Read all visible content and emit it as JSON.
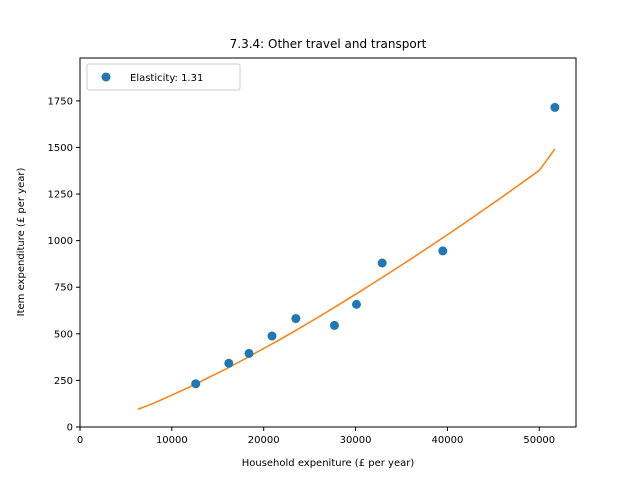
{
  "chart_data": {
    "type": "scatter",
    "title": "7.3.4: Other travel and transport",
    "xlabel": "Household expeniture (£ per year)",
    "ylabel": "Item expenditure (£ per year)",
    "xlim": [
      0,
      54000
    ],
    "ylim": [
      0,
      1980
    ],
    "xticks": [
      0,
      10000,
      20000,
      30000,
      40000,
      50000
    ],
    "yticks": [
      0,
      250,
      500,
      750,
      1000,
      1250,
      1500,
      1750
    ],
    "grid": false,
    "legend_position": "top-left",
    "series": [
      {
        "name": "Elasticity: 1.31",
        "kind": "points",
        "color": "#1f77b4",
        "x": [
          12600,
          16200,
          18400,
          20900,
          23500,
          27700,
          30100,
          32900,
          39500,
          51700
        ],
        "y": [
          232,
          342,
          395,
          488,
          582,
          545,
          658,
          880,
          945,
          1715
        ]
      },
      {
        "kind": "line",
        "color": "#ff7f0e",
        "x": [
          6300,
          8000,
          10000,
          12000,
          14000,
          16000,
          18000,
          20000,
          22000,
          24000,
          26000,
          28000,
          30000,
          32000,
          34000,
          36000,
          38000,
          40000,
          42000,
          44000,
          46000,
          48000,
          50000,
          51700
        ],
        "y": [
          95,
          127,
          171,
          216,
          265,
          314,
          367,
          421,
          476,
          533,
          591,
          651,
          712,
          774,
          837,
          901,
          966,
          1032,
          1099,
          1167,
          1236,
          1306,
          1377,
          1492
        ]
      }
    ]
  }
}
